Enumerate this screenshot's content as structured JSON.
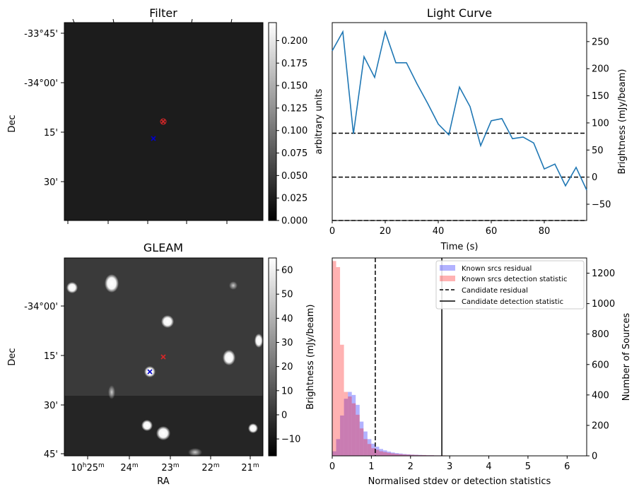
{
  "colors": {
    "line": "#1f77b4",
    "known_residual": "#0000ff",
    "known_detection": "#ff0000",
    "marker_red": "#d62728",
    "marker_blue": "#0000cc"
  },
  "filter_panel": {
    "title": "Filter",
    "ylabel": "Dec",
    "dec_ticks": [
      "-33°45'",
      "-34°00'",
      "15'",
      "30'"
    ],
    "colorbar": {
      "label": "arbitrary units",
      "range": [
        0.0,
        0.22
      ],
      "ticks": [
        "0.000",
        "0.025",
        "0.050",
        "0.075",
        "0.100",
        "0.125",
        "0.150",
        "0.175",
        "0.200"
      ]
    }
  },
  "gleam_panel": {
    "title": "GLEAM",
    "ylabel": "Dec",
    "xlabel": "RA",
    "dec_ticks": [
      "-34°00'",
      "15'",
      "30'",
      "45'"
    ],
    "ra_ticks": [
      {
        "h": "10",
        "m": "25"
      },
      {
        "m": "24"
      },
      {
        "m": "23"
      },
      {
        "m": "22"
      },
      {
        "m": "21"
      }
    ],
    "colorbar": {
      "label": "Brightness (mJy/beam)",
      "range": [
        -17,
        65
      ],
      "ticks": [
        "−10",
        "0",
        "10",
        "20",
        "30",
        "40",
        "50",
        "60"
      ]
    }
  },
  "chart_data": [
    {
      "type": "line",
      "title": "Light Curve",
      "xlabel": "Time (s)",
      "ylabel": "Brightness (mJy/beam)",
      "xlim": [
        0,
        96
      ],
      "ylim": [
        -80,
        285
      ],
      "xticks": [
        "0",
        "20",
        "40",
        "60",
        "80"
      ],
      "yticks": [
        "−50",
        "0",
        "50",
        "100",
        "150",
        "200",
        "250"
      ],
      "x": [
        0,
        4,
        8,
        12,
        16,
        20,
        24,
        28,
        32,
        36,
        40,
        44,
        48,
        52,
        56,
        60,
        64,
        68,
        72,
        76,
        80,
        84,
        88,
        92,
        96
      ],
      "y": [
        233,
        268,
        80,
        222,
        184,
        268,
        211,
        211,
        172,
        136,
        98,
        78,
        166,
        130,
        58,
        104,
        108,
        71,
        74,
        63,
        15,
        24,
        -16,
        18,
        -24
      ],
      "hlines": [
        81,
        0,
        -80
      ]
    },
    {
      "type": "histogram",
      "xlabel": "Normalised stdev or detection statistics",
      "ylabel": "Number of Sources",
      "xlim": [
        0,
        6.5
      ],
      "ylim": [
        0,
        1300
      ],
      "xticks": [
        "0",
        "1",
        "2",
        "3",
        "4",
        "5",
        "6"
      ],
      "yticks": [
        "0",
        "200",
        "400",
        "600",
        "800",
        "1000",
        "1200"
      ],
      "bin_width": 0.1,
      "series": [
        {
          "name": "Known srcs residual",
          "values": [
            30,
            110,
            265,
            375,
            420,
            400,
            335,
            225,
            160,
            110,
            80,
            60,
            45,
            36,
            28,
            22,
            18,
            15,
            12,
            10,
            8,
            7,
            6,
            5,
            4,
            4,
            3,
            3,
            2,
            2,
            2,
            1,
            1,
            1,
            1,
            1,
            1,
            1,
            1,
            1,
            1,
            1,
            1,
            1,
            1,
            1,
            1,
            1,
            1,
            1
          ]
        },
        {
          "name": "Known srcs detection statistic",
          "values": [
            1280,
            1240,
            730,
            420,
            390,
            345,
            270,
            180,
            110,
            78,
            50,
            40,
            30,
            25,
            20,
            16,
            13,
            11,
            9,
            8,
            7,
            6,
            5,
            5,
            4,
            4,
            3,
            3,
            3,
            2,
            2,
            2,
            2,
            2,
            1,
            1,
            1,
            1,
            1,
            1,
            1,
            1,
            1,
            1,
            1,
            1,
            1,
            1,
            1,
            1,
            1,
            1,
            1,
            1,
            1,
            1,
            1,
            1,
            1,
            1,
            1,
            1,
            1,
            1,
            1
          ]
        }
      ],
      "vlines": [
        {
          "name": "Candidate residual",
          "x": 1.1,
          "style": "dashed"
        },
        {
          "name": "Candidate detection statistic",
          "x": 2.8,
          "style": "solid"
        }
      ],
      "legend_position": "top-right"
    }
  ]
}
